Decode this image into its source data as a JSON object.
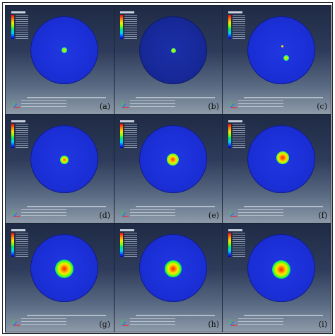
{
  "panels": [
    {
      "label": "(a)"
    },
    {
      "label": "(b)"
    },
    {
      "label": "(c)"
    },
    {
      "label": "(d)"
    },
    {
      "label": "(e)"
    },
    {
      "label": "(f)"
    },
    {
      "label": "(g)"
    },
    {
      "label": "(h)"
    },
    {
      "label": "(i)"
    }
  ],
  "colors": {
    "background_top": "#1f2b45",
    "background_bottom": "#8d9aa8",
    "disc_blue": "#1b2fd7",
    "contour_scale": [
      "#ff0000",
      "#ff7a00",
      "#ffe600",
      "#7fff00",
      "#00e676",
      "#00d5ff",
      "#0044ff",
      "#0000c8"
    ]
  }
}
